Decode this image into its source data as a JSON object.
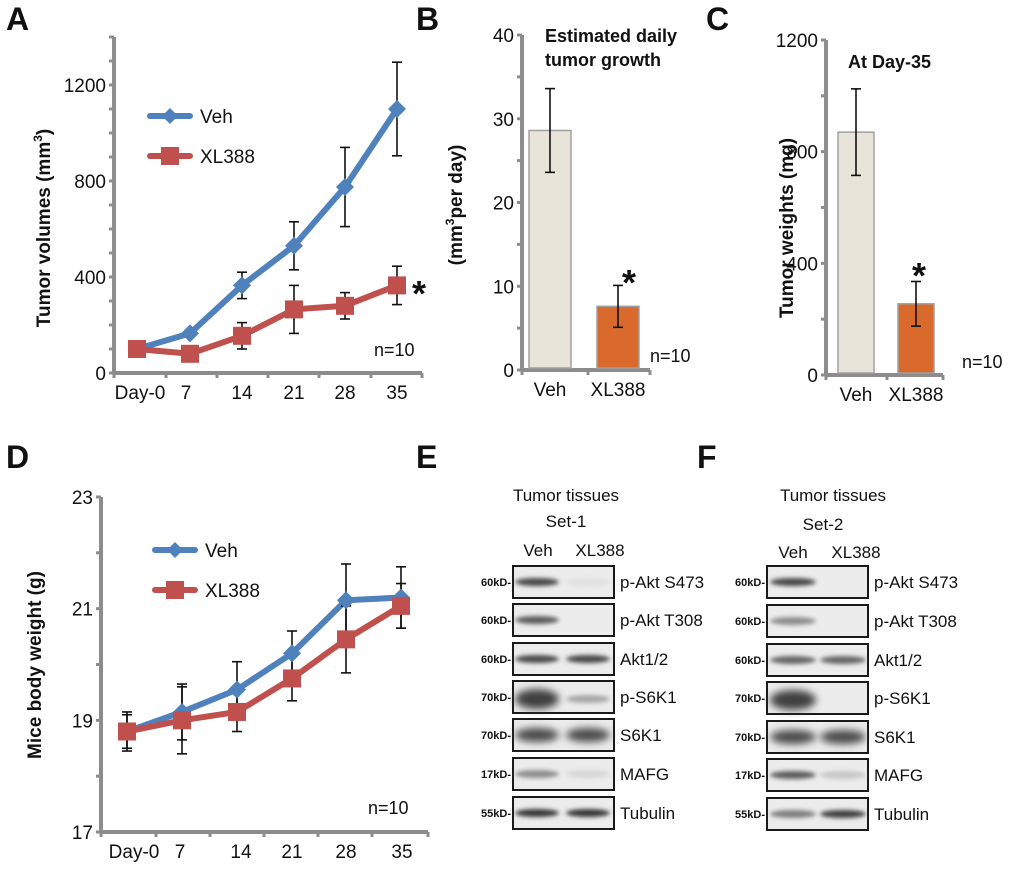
{
  "figure": {
    "panel_letters": [
      "A",
      "B",
      "C",
      "D",
      "E",
      "F"
    ]
  },
  "colors": {
    "veh_line": "#4f81bd",
    "xl388_line": "#c0504d",
    "veh_bar": "#e8e4da",
    "xl388_bar": "#d96a2b",
    "axis": "#8c8c8c"
  },
  "chart_data": [
    {
      "panel": "A",
      "type": "line",
      "title": "",
      "xlabel": "",
      "ylabel": "Tumor volumes (mm",
      "ylabel_sup": "3",
      "ylabel_close": ")",
      "categories": [
        "Day-0",
        "7",
        "14",
        "21",
        "28",
        "35"
      ],
      "ylim": [
        0,
        1400
      ],
      "yticks": [
        0,
        400,
        800,
        1200
      ],
      "grid": false,
      "legend_position": "top-left",
      "series": [
        {
          "name": "Veh",
          "marker": "diamond",
          "values": [
            100,
            165,
            365,
            530,
            775,
            1100
          ],
          "err": [
            0,
            0,
            55,
            100,
            165,
            195
          ]
        },
        {
          "name": "XL388",
          "marker": "square",
          "values": [
            100,
            80,
            155,
            265,
            280,
            365
          ],
          "err": [
            0,
            30,
            55,
            100,
            55,
            80
          ]
        }
      ],
      "annotations": {
        "n": "n=10",
        "significance": "*"
      }
    },
    {
      "panel": "B",
      "type": "bar",
      "title_lines": [
        "Estimated daily",
        "tumor growth"
      ],
      "xlabel": "",
      "ylabel_open": "(mm",
      "ylabel_sup": "3",
      "ylabel_rest": "per day)",
      "categories": [
        "Veh",
        "XL388"
      ],
      "values": [
        28.6,
        7.6
      ],
      "err": [
        5.0,
        2.5
      ],
      "ylim": [
        0,
        40
      ],
      "yticks": [
        0,
        10,
        20,
        30,
        40
      ],
      "grid": false,
      "annotations": {
        "n": "n=10",
        "significance": "*"
      }
    },
    {
      "panel": "C",
      "type": "bar",
      "title": "At Day-35",
      "xlabel": "",
      "ylabel": "Tumor weights (mg)",
      "categories": [
        "Veh",
        "XL388"
      ],
      "values": [
        870,
        255
      ],
      "err": [
        155,
        80
      ],
      "ylim": [
        0,
        1200
      ],
      "yticks": [
        0,
        400,
        800,
        1200
      ],
      "grid": false,
      "annotations": {
        "n": "n=10",
        "significance": "*"
      }
    },
    {
      "panel": "D",
      "type": "line",
      "title": "",
      "xlabel": "",
      "ylabel": "Mice body weight (g)",
      "categories": [
        "Day-0",
        "7",
        "14",
        "21",
        "28",
        "35"
      ],
      "ylim": [
        17,
        23
      ],
      "yticks": [
        17,
        19,
        21,
        23
      ],
      "grid": false,
      "legend_position": "top-left",
      "series": [
        {
          "name": "Veh",
          "marker": "diamond",
          "values": [
            18.8,
            19.15,
            19.55,
            20.2,
            21.15,
            21.2
          ],
          "err": [
            0.35,
            0.5,
            0.5,
            0.4,
            0.65,
            0.55
          ]
        },
        {
          "name": "XL388",
          "marker": "square",
          "values": [
            18.8,
            19.0,
            19.15,
            19.75,
            20.45,
            21.05
          ],
          "err": [
            0.3,
            0.6,
            0.35,
            0.4,
            0.6,
            0.4
          ]
        }
      ],
      "annotations": {
        "n": "n=10"
      }
    }
  ],
  "western_blots": [
    {
      "panel": "E",
      "header_lines": [
        "Tumor tissues",
        "Set-1"
      ],
      "lanes": [
        "Veh",
        "XL388"
      ],
      "rows": [
        {
          "mw": "60kD-",
          "protein": "p-Akt S473",
          "intensity": [
            0.85,
            0.12
          ]
        },
        {
          "mw": "60kD-",
          "protein": "p-Akt T308",
          "intensity": [
            0.75,
            0.0
          ]
        },
        {
          "mw": "60kD-",
          "protein": "Akt1/2",
          "intensity": [
            0.85,
            0.85
          ]
        },
        {
          "mw": "70kD-",
          "protein": "p-S6K1",
          "intensity": [
            0.9,
            0.45
          ]
        },
        {
          "mw": "70kD-",
          "protein": "S6K1",
          "intensity": [
            0.85,
            0.85
          ]
        },
        {
          "mw": "17kD-",
          "protein": "MAFG",
          "intensity": [
            0.55,
            0.2
          ]
        },
        {
          "mw": "55kD-",
          "protein": "Tubulin",
          "intensity": [
            0.95,
            0.95
          ]
        }
      ]
    },
    {
      "panel": "F",
      "header_lines": [
        "Tumor tissues",
        "Set-2"
      ],
      "lanes": [
        "Veh",
        "XL388"
      ],
      "rows": [
        {
          "mw": "60kD-",
          "protein": "p-Akt S473",
          "intensity": [
            0.85,
            0.0
          ]
        },
        {
          "mw": "60kD-",
          "protein": "p-Akt T308",
          "intensity": [
            0.55,
            0.0
          ]
        },
        {
          "mw": "60kD-",
          "protein": "Akt1/2",
          "intensity": [
            0.7,
            0.7
          ]
        },
        {
          "mw": "70kD-",
          "protein": "p-S6K1",
          "intensity": [
            0.9,
            0.0
          ]
        },
        {
          "mw": "70kD-",
          "protein": "S6K1",
          "intensity": [
            0.85,
            0.85
          ]
        },
        {
          "mw": "17kD-",
          "protein": "MAFG",
          "intensity": [
            0.75,
            0.3
          ]
        },
        {
          "mw": "55kD-",
          "protein": "Tubulin",
          "intensity": [
            0.6,
            0.9
          ]
        }
      ]
    }
  ]
}
